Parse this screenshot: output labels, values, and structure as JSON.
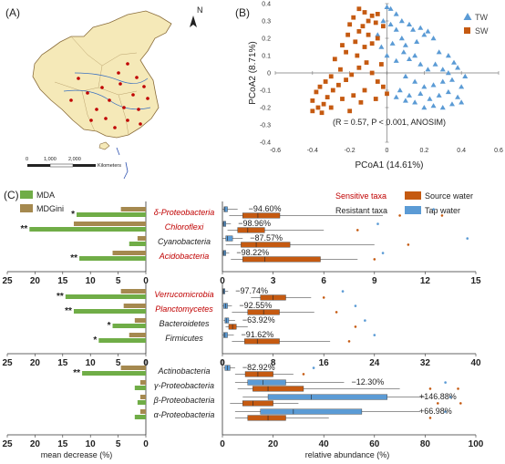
{
  "panels": {
    "a": "(A)",
    "b": "(B)",
    "c": "(C)"
  },
  "panel_a": {
    "north": "N",
    "scale_ticks": [
      "0",
      "1,000",
      "2,000"
    ],
    "scale_unit": "Kilometers"
  },
  "colors": {
    "tw": "#5b9bd5",
    "sw": "#c55a11",
    "mda": "#70ad47",
    "mdgini": "#a5894f",
    "source_box": "#c55a11",
    "tap_box": "#5b9bd5",
    "sensitive_label": "#c00000",
    "map_fill": "#f5e9b8",
    "site_dot": "#c00000"
  },
  "chart_data": [
    {
      "panel": "B",
      "type": "scatter",
      "xlabel": "PCoA1 (14.61%)",
      "ylabel": "PCoA2 (8.71%)",
      "xlim": [
        -0.6,
        0.6
      ],
      "ylim": [
        -0.4,
        0.4
      ],
      "xticks": [
        "-0.6",
        "-0.4",
        "-0.2",
        "0",
        "0.2",
        "0.4",
        "0.6"
      ],
      "yticks": [
        "0.4",
        "0.3",
        "0.2",
        "0.1",
        "0",
        "-0.1",
        "-0.2",
        "-0.3",
        "-0.4"
      ],
      "annotation": "(R = 0.57, P < 0.001, ANOSIM)",
      "legend": [
        "TW",
        "SW"
      ],
      "legend_position": "top-right",
      "series": [
        {
          "name": "TW",
          "marker": "triangle",
          "points": [
            [
              0.0,
              0.38
            ],
            [
              0.02,
              0.37
            ],
            [
              0.05,
              0.34
            ],
            [
              0.08,
              0.3
            ],
            [
              0.12,
              0.28
            ],
            [
              0.14,
              0.25
            ],
            [
              0.18,
              0.26
            ],
            [
              0.2,
              0.22
            ],
            [
              0.22,
              0.24
            ],
            [
              0.25,
              0.2
            ],
            [
              0.05,
              0.25
            ],
            [
              0.08,
              0.2
            ],
            [
              0.1,
              0.16
            ],
            [
              0.03,
              0.17
            ],
            [
              -0.02,
              0.3
            ],
            [
              -0.03,
              0.15
            ],
            [
              0.0,
              0.1
            ],
            [
              0.05,
              0.07
            ],
            [
              0.09,
              0.12
            ],
            [
              0.12,
              0.08
            ],
            [
              0.15,
              0.1
            ],
            [
              0.18,
              0.05
            ],
            [
              0.22,
              0.02
            ],
            [
              0.26,
              0.05
            ],
            [
              0.3,
              0.02
            ],
            [
              0.33,
              0.0
            ],
            [
              0.35,
              -0.04
            ],
            [
              0.36,
              0.06
            ],
            [
              0.3,
              -0.05
            ],
            [
              0.25,
              -0.07
            ],
            [
              0.2,
              -0.08
            ],
            [
              0.15,
              -0.05
            ],
            [
              0.1,
              -0.02
            ],
            [
              0.07,
              -0.1
            ],
            [
              0.12,
              -0.13
            ],
            [
              0.18,
              -0.12
            ],
            [
              0.23,
              -0.15
            ],
            [
              0.28,
              -0.13
            ],
            [
              0.33,
              -0.11
            ],
            [
              0.38,
              -0.14
            ],
            [
              0.4,
              -0.17
            ],
            [
              0.35,
              -0.18
            ],
            [
              0.3,
              -0.2
            ],
            [
              0.25,
              -0.19
            ],
            [
              0.2,
              -0.2
            ],
            [
              0.15,
              -0.17
            ],
            [
              0.1,
              -0.16
            ],
            [
              0.05,
              -0.14
            ],
            [
              0.4,
              -0.08
            ],
            [
              0.42,
              -0.02
            ],
            [
              0.28,
              0.12
            ],
            [
              0.33,
              0.1
            ],
            [
              0.38,
              0.03
            ],
            [
              -0.05,
              0.22
            ],
            [
              0.02,
              0.28
            ],
            [
              0.16,
              0.18
            ]
          ]
        },
        {
          "name": "SW",
          "marker": "square",
          "points": [
            [
              -0.15,
              0.37
            ],
            [
              -0.12,
              0.35
            ],
            [
              -0.08,
              0.33
            ],
            [
              -0.05,
              0.34
            ],
            [
              -0.1,
              0.3
            ],
            [
              -0.06,
              0.29
            ],
            [
              -0.02,
              0.27
            ],
            [
              -0.13,
              0.27
            ],
            [
              -0.18,
              0.32
            ],
            [
              -0.2,
              0.28
            ],
            [
              -0.15,
              0.24
            ],
            [
              -0.1,
              0.22
            ],
            [
              -0.05,
              0.2
            ],
            [
              -0.08,
              0.17
            ],
            [
              -0.12,
              0.15
            ],
            [
              -0.17,
              0.18
            ],
            [
              -0.22,
              0.12
            ],
            [
              -0.28,
              0.08
            ],
            [
              -0.25,
              0.02
            ],
            [
              -0.3,
              -0.02
            ],
            [
              -0.33,
              -0.05
            ],
            [
              -0.36,
              -0.08
            ],
            [
              -0.38,
              -0.11
            ],
            [
              -0.4,
              -0.16
            ],
            [
              -0.37,
              -0.2
            ],
            [
              -0.34,
              -0.18
            ],
            [
              -0.32,
              -0.14
            ],
            [
              -0.29,
              -0.1
            ],
            [
              -0.26,
              -0.07
            ],
            [
              -0.22,
              -0.04
            ],
            [
              -0.19,
              -0.01
            ],
            [
              -0.15,
              0.03
            ],
            [
              -0.11,
              0.06
            ],
            [
              -0.08,
              0.0
            ],
            [
              -0.05,
              -0.05
            ],
            [
              -0.02,
              -0.08
            ],
            [
              -0.12,
              -0.1
            ],
            [
              -0.18,
              -0.13
            ],
            [
              -0.24,
              -0.15
            ],
            [
              -0.3,
              -0.2
            ],
            [
              -0.35,
              -0.23
            ],
            [
              -0.4,
              -0.22
            ],
            [
              -0.2,
              -0.22
            ],
            [
              -0.14,
              -0.17
            ],
            [
              -0.06,
              -0.15
            ],
            [
              0.0,
              -0.12
            ],
            [
              -0.03,
              0.05
            ],
            [
              -0.16,
              0.1
            ],
            [
              -0.21,
              0.22
            ],
            [
              -0.24,
              0.16
            ]
          ]
        }
      ]
    },
    {
      "panel": "C",
      "type": "bar",
      "orientation": "horizontal",
      "xlabel": "mean decrease (%)",
      "xlim": [
        0,
        25
      ],
      "xticks": [
        "25",
        "20",
        "15",
        "10",
        "5",
        "0"
      ],
      "legend": [
        "MDA",
        "MDGini"
      ],
      "legend_position": "top-left",
      "groups": [
        {
          "categories": [
            "δ-Proteobacteria",
            "Chloroflexi",
            "Cyanobacteria",
            "Acidobacteria"
          ],
          "sensitive": [
            true,
            true,
            false,
            true
          ],
          "significance": [
            "*",
            "**",
            "",
            "**"
          ],
          "series": [
            {
              "name": "MDA",
              "values": [
                12.5,
                21.0,
                3.0,
                12.0
              ]
            },
            {
              "name": "MDGini",
              "values": [
                4.5,
                13.0,
                1.5,
                6.0
              ]
            }
          ]
        },
        {
          "categories": [
            "Verrucomicrobia",
            "Planctomycetes",
            "Bacteroidetes",
            "Firmicutes"
          ],
          "sensitive": [
            true,
            true,
            false,
            false
          ],
          "significance": [
            "**",
            "**",
            "*",
            "*"
          ],
          "series": [
            {
              "name": "MDA",
              "values": [
                14.5,
                13.0,
                6.0,
                8.5
              ]
            },
            {
              "name": "MDGini",
              "values": [
                4.5,
                4.0,
                2.0,
                3.0
              ]
            }
          ]
        },
        {
          "categories": [
            "Actinobacteria",
            "γ-Proteobacteria",
            "β-Proteobacteria",
            "α-Proteobacteria"
          ],
          "sensitive": [
            false,
            false,
            false,
            false
          ],
          "significance": [
            "**",
            "",
            "",
            ""
          ],
          "series": [
            {
              "name": "MDA",
              "values": [
                11.5,
                2.0,
                1.5,
                2.0
              ]
            },
            {
              "name": "MDGini",
              "values": [
                4.5,
                1.0,
                1.0,
                1.0
              ]
            }
          ]
        }
      ]
    },
    {
      "panel": "C",
      "type": "box",
      "orientation": "horizontal",
      "xlabel": "relative abundance (%)",
      "legend": [
        "Sensitive taxa",
        "Resistant taxa",
        "Source water",
        "Tap water"
      ],
      "legend_position": "top-right",
      "groups": [
        {
          "xlim": [
            0,
            15
          ],
          "xticks": [
            "0",
            "3",
            "6",
            "9",
            "12",
            "15"
          ],
          "rows": [
            {
              "change": "−94.60%",
              "source": [
                0.4,
                1.2,
                2.1,
                3.4,
                9.5
              ],
              "tap": [
                0.0,
                0.1,
                0.15,
                0.3,
                0.9
              ],
              "outliers": [
                10.5,
                12.5,
                13.0
              ]
            },
            {
              "change": "−98.96%",
              "source": [
                0.3,
                0.9,
                1.5,
                2.5,
                6.0
              ],
              "tap": [
                0.0,
                0.05,
                0.1,
                0.2,
                0.5
              ],
              "outliers": [
                8.0,
                9.2
              ]
            },
            {
              "change": "−87.57%",
              "source": [
                0.2,
                1.1,
                2.0,
                4.0,
                9.0
              ],
              "tap": [
                0.0,
                0.2,
                0.3,
                0.6,
                1.2
              ],
              "outliers": [
                11.0,
                14.5
              ]
            },
            {
              "change": "−98.22%",
              "source": [
                0.5,
                1.2,
                2.5,
                5.8,
                8.0
              ],
              "tap": [
                0.0,
                0.05,
                0.1,
                0.2,
                0.4
              ],
              "outliers": [
                9.0,
                9.5
              ]
            }
          ]
        },
        {
          "xlim": [
            0,
            40
          ],
          "xticks": [
            "0",
            "8",
            "16",
            "24",
            "32",
            "40"
          ],
          "rows": [
            {
              "change": "−97.74%",
              "source": [
                4.5,
                6.0,
                8.0,
                10.0,
                14.0
              ],
              "tap": [
                0.0,
                0.1,
                0.2,
                0.4,
                0.9
              ],
              "outliers": [
                16.0,
                19.0
              ]
            },
            {
              "change": "−92.55%",
              "source": [
                1.5,
                4.0,
                6.5,
                9.0,
                14.5
              ],
              "tap": [
                0.0,
                0.2,
                0.5,
                0.8,
                1.5
              ],
              "outliers": [
                18.0,
                21.0
              ]
            },
            {
              "change": "−63.92%",
              "source": [
                0.5,
                1.0,
                1.6,
                2.2,
                4.0
              ],
              "tap": [
                0.2,
                0.4,
                0.6,
                1.0,
                2.0
              ],
              "outliers": [
                21.0,
                22.5
              ]
            },
            {
              "change": "−91.62%",
              "source": [
                1.5,
                3.5,
                5.5,
                9.0,
                17.0
              ],
              "tap": [
                0.0,
                0.2,
                0.4,
                0.8,
                1.8
              ],
              "outliers": [
                20.0,
                24.0
              ]
            }
          ]
        },
        {
          "xlim": [
            0,
            100
          ],
          "xticks": [
            "0",
            "20",
            "40",
            "60",
            "80",
            "100"
          ],
          "rows": [
            {
              "change": "−82.92%",
              "source": [
                5.0,
                9.0,
                14.0,
                20.0,
                28.0
              ],
              "tap": [
                0.5,
                1.0,
                2.0,
                3.0,
                5.0
              ],
              "outliers": [
                32.0,
                36.0
              ]
            },
            {
              "change": "−12.30%",
              "source": [
                6.0,
                12.0,
                18.0,
                32.0,
                70.0
              ],
              "tap": [
                5.0,
                10.0,
                16.0,
                25.0,
                48.0
              ],
              "outliers": [
                82.0,
                88.0,
                93.0
              ]
            },
            {
              "change": "+146.88%",
              "source": [
                3.0,
                8.0,
                12.0,
                20.0,
                30.0
              ],
              "tap": [
                8.0,
                18.0,
                35.0,
                65.0,
                80.0
              ],
              "outliers": [
                85.0,
                90.0,
                94.0
              ]
            },
            {
              "change": "+66.98%",
              "source": [
                5.0,
                10.0,
                18.0,
                25.0,
                42.0
              ],
              "tap": [
                5.0,
                15.0,
                28.0,
                55.0,
                78.0
              ],
              "outliers": [
                82.0,
                88.0
              ]
            }
          ]
        }
      ]
    }
  ]
}
